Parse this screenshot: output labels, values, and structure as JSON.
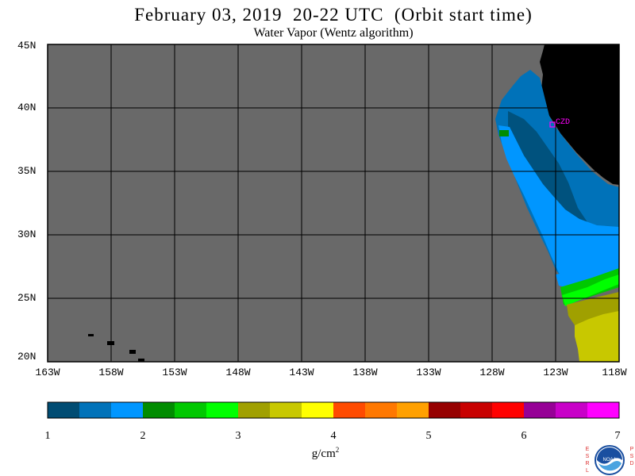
{
  "title": "February 03, 2019  20-22 UTC  (Orbit start time)",
  "subtitle": "Water Vapor (Wentz algorithm)",
  "map": {
    "region": "Eastern North Pacific / US West Coast",
    "marker_label": "CZD",
    "colors": {
      "ocean_no_data": "#696969",
      "land": "#000000",
      "grid": "#000000",
      "marker": "#ff00ff"
    },
    "lat_labels": [
      "45N",
      "40N",
      "35N",
      "30N",
      "25N",
      "20N"
    ],
    "lon_labels": [
      "163W",
      "158W",
      "153W",
      "148W",
      "143W",
      "138W",
      "133W",
      "128W",
      "123W",
      "118W"
    ]
  },
  "colorbar": {
    "unit": "g/cm",
    "unit_exponent": "2",
    "tick_labels": [
      "1",
      "2",
      "3",
      "4",
      "5",
      "6",
      "7"
    ],
    "range": [
      1,
      7
    ],
    "colors": [
      "#004c73",
      "#0072b9",
      "#0096ff",
      "#008c00",
      "#00c800",
      "#00ff00",
      "#a0a000",
      "#c8c800",
      "#ffff00",
      "#ff4b00",
      "#ff7800",
      "#ffa000",
      "#960000",
      "#c80000",
      "#ff0000",
      "#960096",
      "#c800c8",
      "#ff00ff"
    ]
  },
  "logo": {
    "left_letters": "ESRL",
    "right_letters": "PSD",
    "center": "NOAA"
  }
}
